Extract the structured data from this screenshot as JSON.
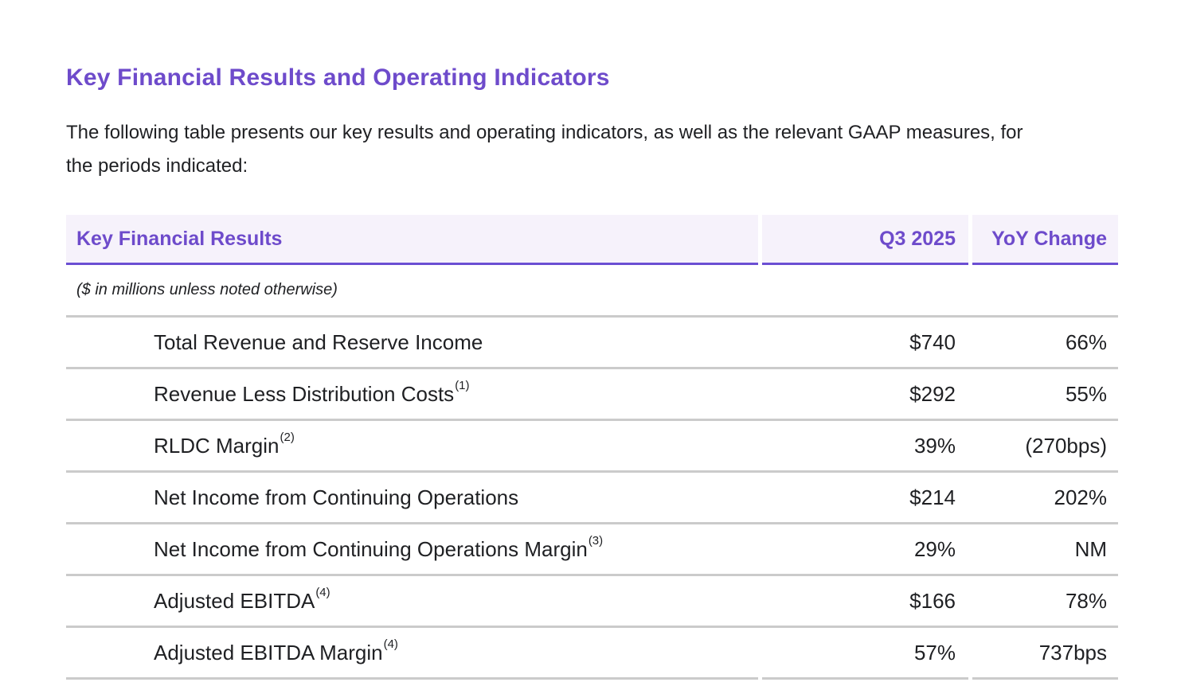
{
  "page": {
    "title": "Key Financial Results and Operating Indicators",
    "intro": "The following table presents our key results and operating indicators, as well as the relevant GAAP measures, for the periods indicated:"
  },
  "table": {
    "columns": [
      "Key Financial Results",
      "Q3 2025",
      "YoY Change"
    ],
    "note": "($ in millions unless noted otherwise)",
    "rows": [
      {
        "label": "Total Revenue and Reserve Income",
        "footnote": "",
        "q3": "$740",
        "yoy": "66%"
      },
      {
        "label": "Revenue Less Distribution Costs",
        "footnote": "(1)",
        "q3": "$292",
        "yoy": "55%"
      },
      {
        "label": "RLDC Margin",
        "footnote": "(2)",
        "q3": "39%",
        "yoy": "(270bps)"
      },
      {
        "label": "Net Income from Continuing Operations",
        "footnote": "",
        "q3": "$214",
        "yoy": "202%"
      },
      {
        "label": "Net Income from Continuing Operations Margin",
        "footnote": "(3)",
        "q3": "29%",
        "yoy": "NM"
      },
      {
        "label": "Adjusted EBITDA",
        "footnote": "(4)",
        "q3": "$166",
        "yoy": "78%"
      },
      {
        "label": "Adjusted EBITDA Margin",
        "footnote": "(4)",
        "q3": "57%",
        "yoy": "737bps"
      }
    ]
  },
  "colors": {
    "accent": "#6e4bcb",
    "accent_underline": "#6b4fd3",
    "header_background": "#f6f2fb",
    "divider": "#cbcbcb",
    "text": "#1f2023"
  }
}
